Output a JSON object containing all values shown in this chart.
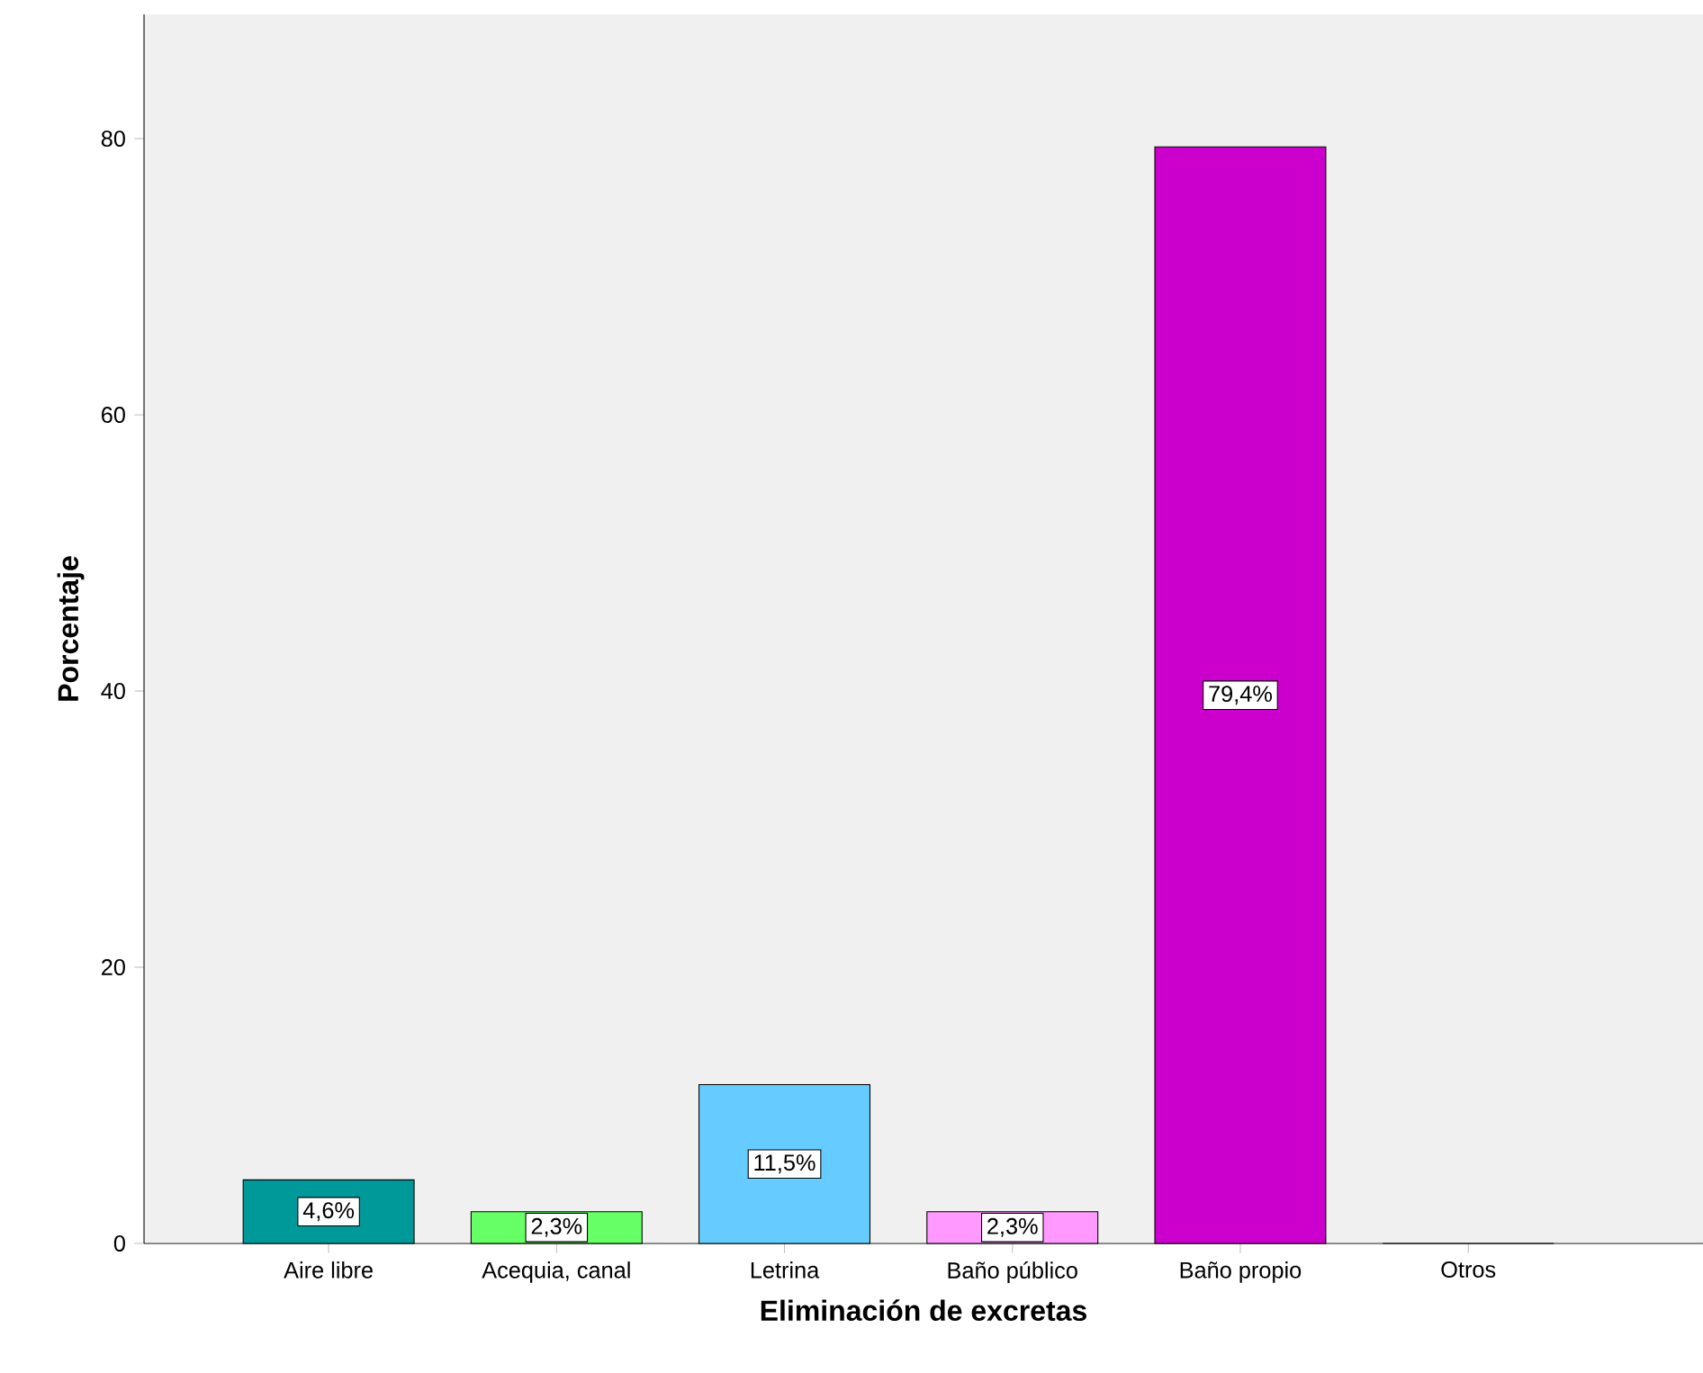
{
  "chart_data": {
    "type": "bar",
    "xlabel": "Eliminación de excretas",
    "ylabel": "Porcentaje",
    "categories": [
      "Aire libre",
      "Acequia, canal",
      "Letrina",
      "Baño público",
      "Baño propio",
      "Otros"
    ],
    "values": [
      4.6,
      2.3,
      11.5,
      2.3,
      79.4,
      0
    ],
    "colors": [
      "#009999",
      "#66ff66",
      "#66ccff",
      "#ff99ff",
      "#cc00cc",
      "#888888"
    ],
    "value_labels": [
      "4,6%",
      "2,3%",
      "11,5%",
      "2,3%",
      "79,4%",
      null
    ],
    "ylim": [
      0,
      89
    ],
    "yticks": [
      0,
      20,
      40,
      60,
      80
    ]
  }
}
